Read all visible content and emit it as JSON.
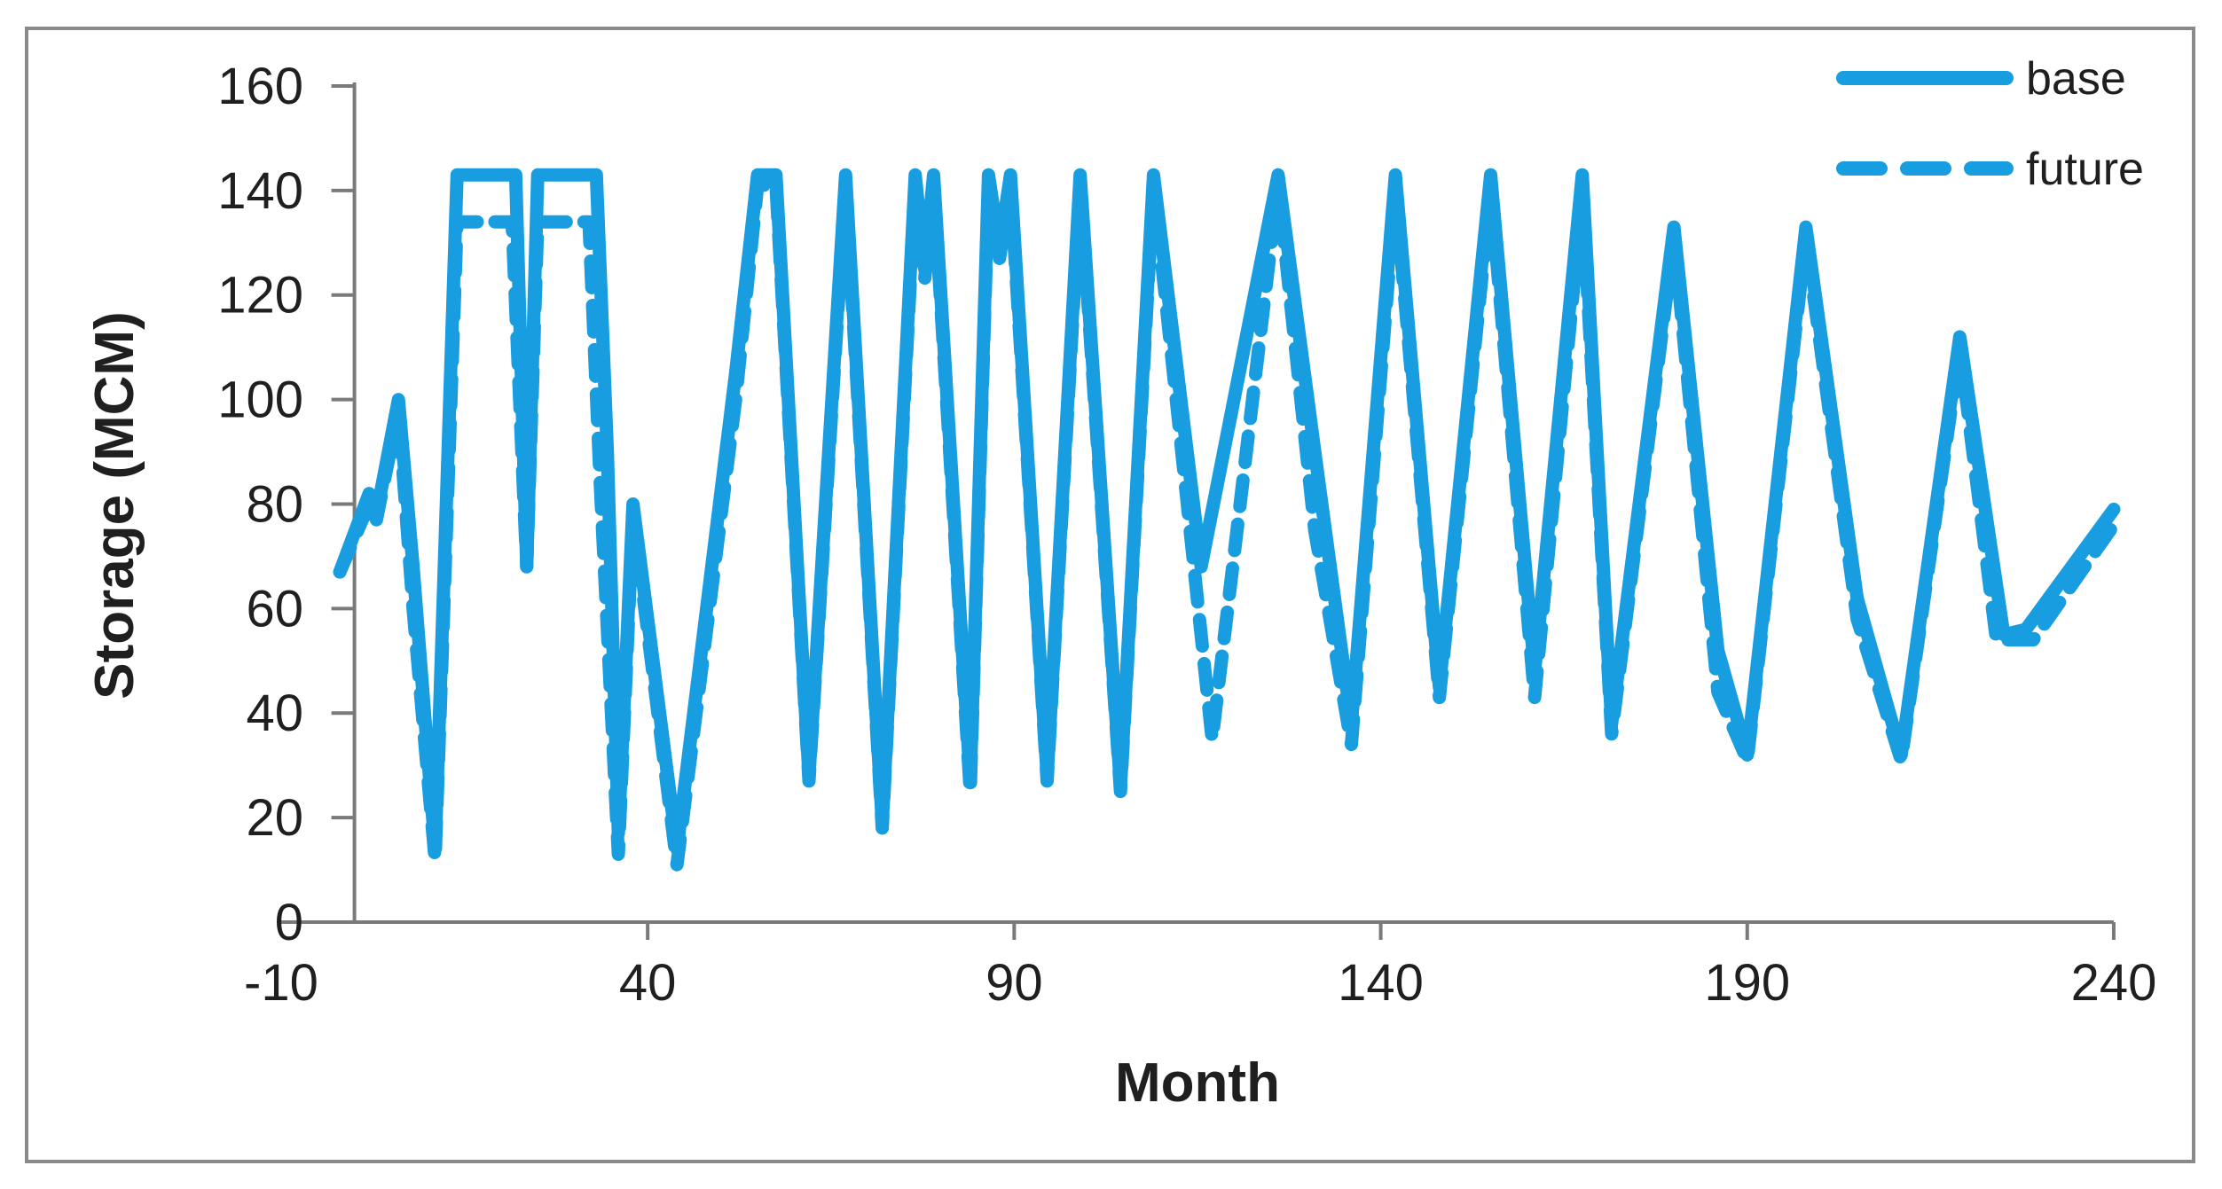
{
  "chart_data": {
    "type": "line",
    "title": "",
    "xlabel": "Month",
    "ylabel": "Storage (MCM)",
    "xlim": [
      -10,
      240
    ],
    "ylim": [
      0,
      160
    ],
    "x_ticks": [
      -10,
      40,
      90,
      140,
      190,
      240
    ],
    "y_ticks": [
      0,
      20,
      40,
      60,
      80,
      100,
      120,
      140,
      160
    ],
    "grid": false,
    "legend_position": "top-right",
    "line_color": "#189DE0",
    "series": [
      {
        "name": "base",
        "style": "solid",
        "points": [
          [
            -2,
            67
          ],
          [
            2,
            82
          ],
          [
            3,
            78
          ],
          [
            6,
            100
          ],
          [
            8,
            68
          ],
          [
            11,
            14
          ],
          [
            14,
            143
          ],
          [
            22,
            143
          ],
          [
            23.5,
            68
          ],
          [
            25,
            143
          ],
          [
            33,
            143
          ],
          [
            34.5,
            90
          ],
          [
            36,
            17
          ],
          [
            38,
            80
          ],
          [
            44,
            14
          ],
          [
            52,
            105
          ],
          [
            55,
            143
          ],
          [
            57.5,
            143
          ],
          [
            62,
            28
          ],
          [
            67,
            143
          ],
          [
            72,
            19
          ],
          [
            76.5,
            143
          ],
          [
            77.8,
            125
          ],
          [
            79,
            143
          ],
          [
            84,
            27
          ],
          [
            86.5,
            143
          ],
          [
            88,
            129
          ],
          [
            89.5,
            143
          ],
          [
            94.5,
            28
          ],
          [
            99,
            143
          ],
          [
            104.5,
            26
          ],
          [
            109,
            143
          ],
          [
            115.5,
            68
          ],
          [
            126,
            143
          ],
          [
            131,
            90
          ],
          [
            136,
            38
          ],
          [
            142,
            143
          ],
          [
            148,
            45
          ],
          [
            155,
            143
          ],
          [
            161,
            48
          ],
          [
            167.5,
            143
          ],
          [
            171.5,
            38
          ],
          [
            180,
            133
          ],
          [
            186,
            52
          ],
          [
            190,
            32
          ],
          [
            198,
            133
          ],
          [
            205,
            62
          ],
          [
            211,
            32
          ],
          [
            219,
            112
          ],
          [
            225,
            55
          ],
          [
            228,
            56
          ],
          [
            240,
            79
          ]
        ]
      },
      {
        "name": "future",
        "style": "dashed",
        "points": [
          [
            -2,
            67
          ],
          [
            2,
            80
          ],
          [
            3,
            77
          ],
          [
            6,
            98
          ],
          [
            8,
            60
          ],
          [
            11,
            12
          ],
          [
            14,
            134
          ],
          [
            21.5,
            134
          ],
          [
            23.5,
            68
          ],
          [
            25,
            134
          ],
          [
            32,
            134
          ],
          [
            33.5,
            85
          ],
          [
            36,
            13
          ],
          [
            38,
            78
          ],
          [
            44,
            11
          ],
          [
            52,
            100
          ],
          [
            55,
            141
          ],
          [
            57.5,
            141
          ],
          [
            62,
            27
          ],
          [
            67,
            141
          ],
          [
            72,
            18
          ],
          [
            76.5,
            141
          ],
          [
            77.8,
            123
          ],
          [
            79,
            141
          ],
          [
            84,
            25
          ],
          [
            86.5,
            141
          ],
          [
            88,
            127
          ],
          [
            89.5,
            141
          ],
          [
            94.5,
            27
          ],
          [
            99,
            141
          ],
          [
            104.5,
            25
          ],
          [
            109,
            141
          ],
          [
            114,
            75
          ],
          [
            117,
            35
          ],
          [
            126,
            141
          ],
          [
            131,
            75
          ],
          [
            136,
            34
          ],
          [
            142,
            140
          ],
          [
            148,
            43
          ],
          [
            155,
            140
          ],
          [
            161,
            43
          ],
          [
            167.5,
            139
          ],
          [
            171.5,
            36
          ],
          [
            180,
            131
          ],
          [
            186,
            44
          ],
          [
            190,
            31
          ],
          [
            198,
            131
          ],
          [
            205,
            58
          ],
          [
            211,
            31
          ],
          [
            219,
            110
          ],
          [
            224,
            54
          ],
          [
            229,
            54
          ],
          [
            240,
            76
          ]
        ]
      }
    ]
  },
  "legend": {
    "items": [
      {
        "label": "base",
        "line_style": "solid"
      },
      {
        "label": "future",
        "line_style": "dashed"
      }
    ]
  },
  "colors": {
    "line": "#189DE0",
    "axis": "#7a7a7a",
    "frame": "#8a8a8a",
    "text": "#1f1f1f",
    "background": "#ffffff"
  }
}
